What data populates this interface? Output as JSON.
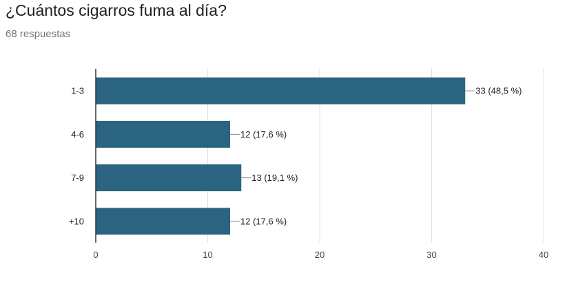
{
  "header": {
    "title": "¿Cuántos cigarros fuma al día?",
    "responses": "68 respuestas"
  },
  "colors": {
    "bar": "#2a6480",
    "grid": "#e0e0e0",
    "axis": "#333333",
    "leader": "#888888"
  },
  "chart_data": {
    "type": "bar",
    "orientation": "horizontal",
    "title": "¿Cuántos cigarros fuma al día?",
    "categories": [
      "1-3",
      "4-6",
      "7-9",
      "+10"
    ],
    "values": [
      33,
      12,
      13,
      12
    ],
    "data_labels": [
      "33 (48,5 %)",
      "12 (17,6 %)",
      "13 (19,1 %)",
      "12 (17,6 %)"
    ],
    "xlim": [
      0,
      40
    ],
    "xticks": [
      0,
      10,
      20,
      30,
      40
    ],
    "grid": true,
    "legend": "none"
  }
}
